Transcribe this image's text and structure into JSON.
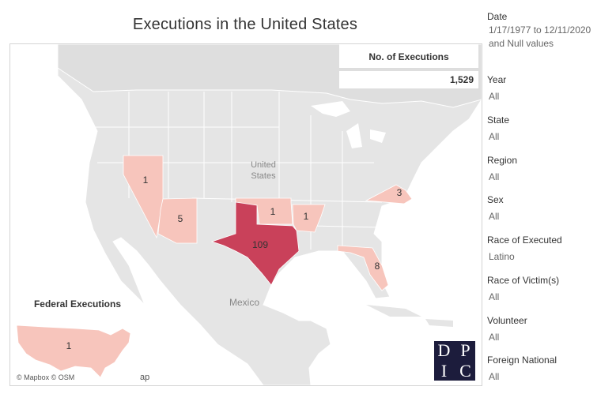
{
  "title": "Executions in the United States",
  "kpi": {
    "label": "No. of Executions",
    "value": "1,529"
  },
  "map": {
    "country_labels": {
      "us_line1": "United",
      "us_line2": "States",
      "mexico": "Mexico"
    },
    "credits": "© Mapbox © OSM",
    "credits_suffix": "ap",
    "states": [
      {
        "name": "Nevada",
        "value": "1",
        "color": "#f7c5bc"
      },
      {
        "name": "Arizona",
        "value": "5",
        "color": "#f7c5bc"
      },
      {
        "name": "Oklahoma",
        "value": "1",
        "color": "#f7c5bc"
      },
      {
        "name": "Arkansas",
        "value": "1",
        "color": "#f7c5bc"
      },
      {
        "name": "Texas",
        "value": "109",
        "color": "#c9415a"
      },
      {
        "name": "Florida",
        "value": "8",
        "color": "#f7c5bc"
      },
      {
        "name": "Virginia",
        "value": "3",
        "color": "#f7c5bc"
      }
    ],
    "federal": {
      "title": "Federal Executions",
      "value": "1",
      "color": "#f7c5bc"
    }
  },
  "logo": {
    "letters": [
      "D",
      "P",
      "I",
      "C"
    ]
  },
  "filters": [
    {
      "label": "Date",
      "value": "1/17/1977 to 12/11/2020 and Null values"
    },
    {
      "label": "Year",
      "value": "All"
    },
    {
      "label": "State",
      "value": "All"
    },
    {
      "label": "Region",
      "value": "All"
    },
    {
      "label": "Sex",
      "value": "All"
    },
    {
      "label": "Race of Executed",
      "value": "Latino"
    },
    {
      "label": "Race of Victim(s)",
      "value": "All"
    },
    {
      "label": "Volunteer",
      "value": "All"
    },
    {
      "label": "Foreign National",
      "value": "All"
    }
  ]
}
